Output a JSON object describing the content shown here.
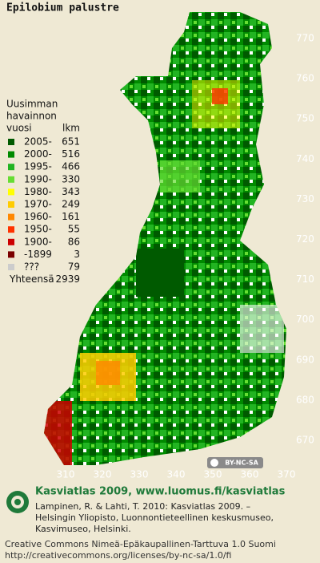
{
  "title": "Epilobium palustre",
  "legend": {
    "heading": [
      "Uusimman",
      "havainnon"
    ],
    "col_headers": [
      "vuosi",
      "lkm"
    ],
    "rows": [
      {
        "label": "2005-",
        "count": 651,
        "color": "#005a00"
      },
      {
        "label": "2000-",
        "count": 516,
        "color": "#008a00"
      },
      {
        "label": "1995-",
        "count": 466,
        "color": "#22b422"
      },
      {
        "label": "1990-",
        "count": 330,
        "color": "#66dd33"
      },
      {
        "label": "1980-",
        "count": 343,
        "color": "#ffff00"
      },
      {
        "label": "1970-",
        "count": 249,
        "color": "#ffcc00"
      },
      {
        "label": "1960-",
        "count": 161,
        "color": "#ff8800"
      },
      {
        "label": "1950-",
        "count": 55,
        "color": "#ff3300"
      },
      {
        "label": "1900-",
        "count": 86,
        "color": "#cc0000"
      },
      {
        "label": "-1899",
        "count": 3,
        "color": "#7a0000"
      },
      {
        "label": "???",
        "count": 79,
        "color": "#cccccc"
      }
    ],
    "total_label": "Yhteensä",
    "total": 2939
  },
  "map": {
    "y_ticks": [
      770,
      760,
      750,
      740,
      730,
      720,
      710,
      700,
      690,
      680,
      670
    ],
    "x_ticks": [
      310,
      320,
      330,
      340,
      350,
      360,
      370
    ],
    "license_badge": "BY-NC-SA"
  },
  "footer": {
    "site": "Kasviatlas 2009, www.luomus.fi/kasviatlas",
    "citation": [
      "Lampinen, R. & Lahti, T. 2010: Kasviatlas 2009. –",
      "Helsingin Yliopisto, Luonnontieteellinen keskusmuseo,",
      "Kasvimuseo, Helsinki."
    ],
    "license": [
      "Creative Commons Nimeä-Epäkaupallinen-Tarttuva 1.0 Suomi",
      "http://creativecommons.org/licenses/by-nc-sa/1.0/fi"
    ]
  }
}
